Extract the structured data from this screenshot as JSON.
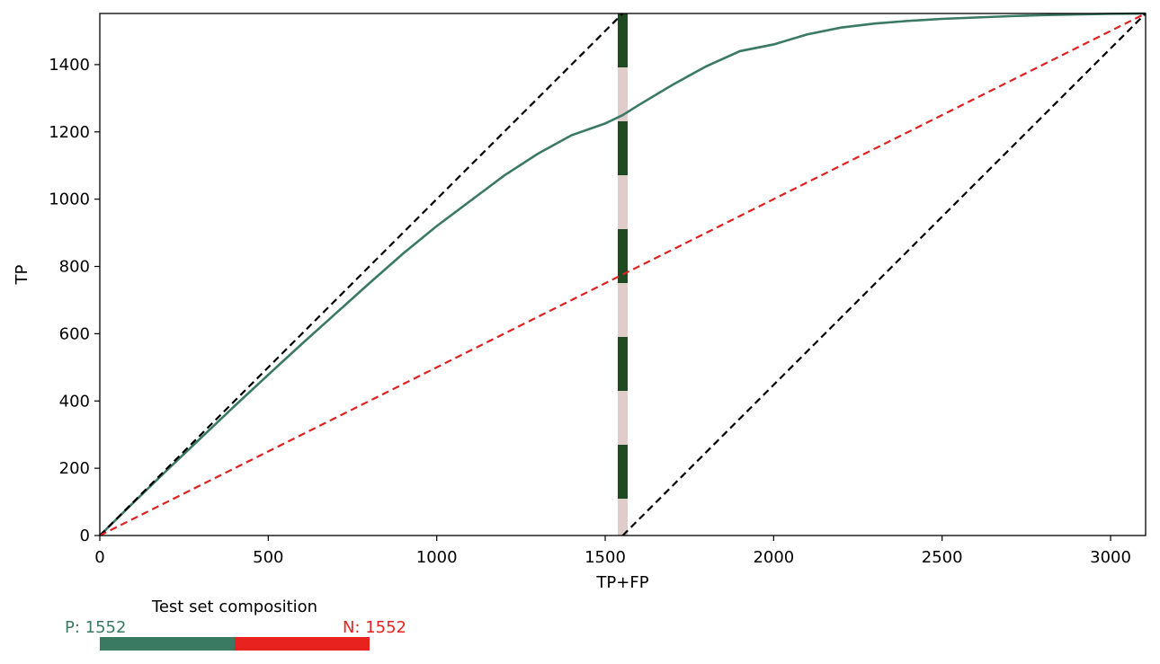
{
  "chart_data": {
    "type": "line",
    "xlabel": "TP+FP",
    "ylabel": "TP",
    "xlim": [
      0,
      3104
    ],
    "ylim": [
      0,
      1552
    ],
    "x_ticks": [
      0,
      500,
      1000,
      1500,
      2000,
      2500,
      3000
    ],
    "y_ticks": [
      0,
      200,
      400,
      600,
      800,
      1000,
      1200,
      1400
    ],
    "grid": false,
    "series": [
      {
        "style": "solid",
        "color": "#3a7a63",
        "x": [
          0,
          100,
          200,
          300,
          400,
          500,
          600,
          700,
          800,
          900,
          1000,
          1100,
          1200,
          1300,
          1400,
          1500,
          1552,
          1600,
          1700,
          1800,
          1900,
          2000,
          2100,
          2200,
          2300,
          2400,
          2500,
          2600,
          2700,
          2800,
          2900,
          3000,
          3104
        ],
        "y": [
          0,
          98,
          195,
          290,
          385,
          478,
          570,
          660,
          750,
          838,
          920,
          995,
          1070,
          1135,
          1190,
          1225,
          1250,
          1280,
          1340,
          1395,
          1440,
          1460,
          1490,
          1510,
          1522,
          1530,
          1536,
          1540,
          1544,
          1547,
          1549,
          1551,
          1552
        ]
      },
      {
        "style": "dashed",
        "color": "#000000",
        "x": [
          0,
          1552
        ],
        "y": [
          0,
          1552
        ]
      },
      {
        "style": "dashed",
        "color": "#000000",
        "x": [
          1552,
          3104
        ],
        "y": [
          0,
          1552
        ]
      },
      {
        "style": "dashed",
        "color": "#e02020",
        "x": [
          0,
          3104
        ],
        "y": [
          0,
          1552
        ]
      }
    ],
    "vertical_marker": {
      "x": 1552,
      "colors": [
        "#1f4a22",
        "#e1cccc"
      ]
    }
  },
  "composition": {
    "title": "Test set composition",
    "p_label": "P: 1552",
    "n_label": "N: 1552",
    "p_value": 1552,
    "n_value": 1552,
    "p_color": "#3a7a63",
    "n_color": "#e8231f"
  }
}
